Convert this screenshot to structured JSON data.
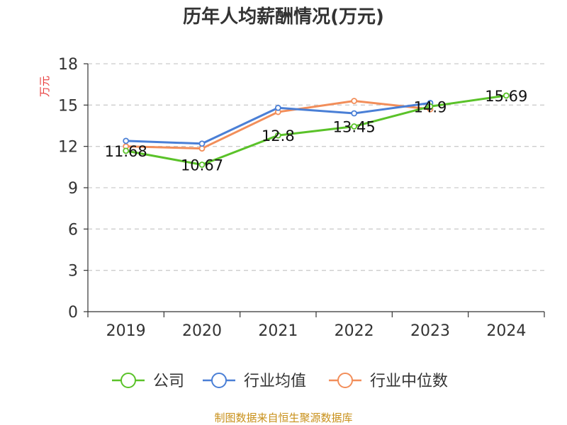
{
  "chart_data": {
    "type": "line",
    "title": "历年人均薪酬情况(万元)",
    "ylabel": "万元",
    "xlabel": "",
    "categories": [
      "2019",
      "2020",
      "2021",
      "2022",
      "2023",
      "2024"
    ],
    "ylim": [
      0,
      18
    ],
    "yticks": [
      "0",
      "3",
      "6",
      "9",
      "12",
      "15",
      "18"
    ],
    "grid": true,
    "legend_position": "bottom",
    "series": [
      {
        "name": "公司",
        "color": "#5ac229",
        "values": [
          11.68,
          10.67,
          12.8,
          13.45,
          14.9,
          15.69
        ],
        "data_labels": [
          "11.68",
          "10.67",
          "12.8",
          "13.45",
          "14.9",
          "15.69"
        ]
      },
      {
        "name": "行业均值",
        "color": "#4a7fd6",
        "values": [
          12.4,
          12.2,
          14.8,
          14.4,
          15.15,
          null
        ]
      },
      {
        "name": "行业中位数",
        "color": "#f28e5a",
        "values": [
          12.0,
          11.85,
          14.5,
          15.3,
          14.7,
          null
        ]
      }
    ]
  },
  "source": "制图数据来自恒生聚源数据库",
  "colors": {
    "ylabel": "#e83b3b",
    "source": "#c8901a",
    "grid": "#cccccc",
    "axis": "#333333"
  }
}
